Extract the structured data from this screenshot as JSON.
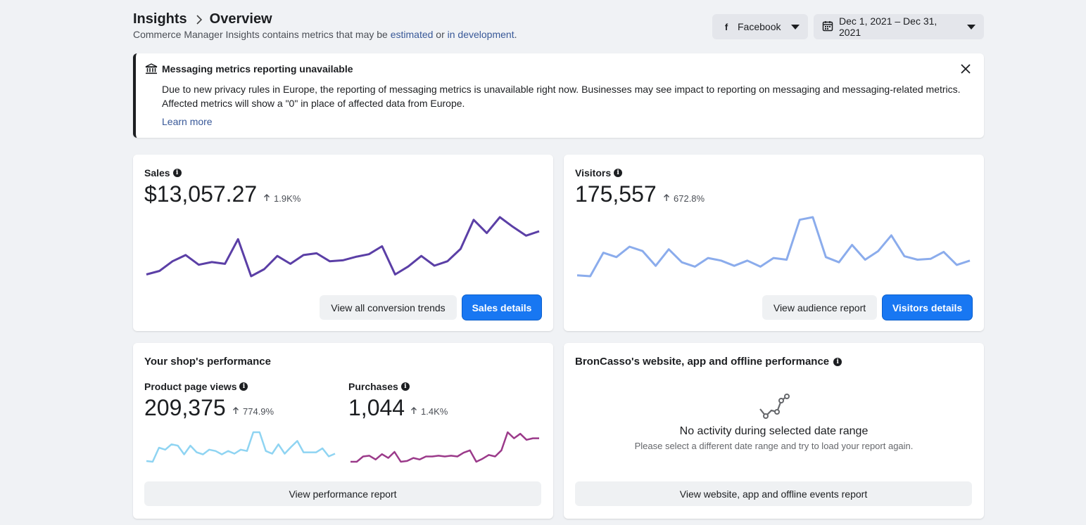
{
  "header": {
    "crumb_root": "Insights",
    "crumb_current": "Overview",
    "subtitle_prefix": "Commerce Manager Insights contains metrics that may be",
    "subtitle_link1": "estimated",
    "subtitle_or": "or",
    "subtitle_link2": "in development",
    "subtitle_end": ".",
    "channel": "Facebook",
    "date_range": "Dec 1, 2021 – Dec 31, 2021"
  },
  "notice": {
    "title": "Messaging metrics reporting unavailable",
    "body": "Due to new privacy rules in Europe, the reporting of messaging metrics is unavailable right now. Businesses may see impact to reporting on messaging and messaging-related metrics. Affected metrics will show a \"0\" in place of affected data from Europe.",
    "link": "Learn more"
  },
  "sales": {
    "label": "Sales",
    "value": "$13,057.27",
    "delta": "1.9K%",
    "btn_secondary": "View all conversion trends",
    "btn_primary": "Sales details",
    "color": "#5b3fa6",
    "trend": [
      5,
      9,
      20,
      27,
      16,
      19,
      17,
      45,
      3,
      11,
      26,
      17,
      27,
      29,
      20,
      21,
      25,
      28,
      37,
      5,
      14,
      26,
      15,
      20,
      34,
      67,
      52,
      70,
      59,
      49,
      54
    ]
  },
  "visitors": {
    "label": "Visitors",
    "value": "175,557",
    "delta": "672.8%",
    "btn_secondary": "View audience report",
    "btn_primary": "Visitors details",
    "color": "#8bacec",
    "trend": [
      12,
      11,
      38,
      33,
      45,
      40,
      23,
      42,
      27,
      22,
      32,
      29,
      23,
      29,
      22,
      32,
      30,
      76,
      79,
      33,
      27,
      47,
      30,
      40,
      58,
      34,
      30,
      31,
      39,
      24,
      29
    ]
  },
  "shop": {
    "title": "Your shop's performance",
    "product_views": {
      "label": "Product page views",
      "value": "209,375",
      "delta": "774.9%",
      "color": "#8fd4f2",
      "trend": [
        5,
        4,
        25,
        22,
        30,
        28,
        15,
        28,
        18,
        15,
        22,
        20,
        15,
        20,
        16,
        22,
        20,
        48,
        48,
        20,
        16,
        30,
        16,
        26,
        35,
        18,
        18,
        18,
        24,
        12,
        16
      ]
    },
    "purchases": {
      "label": "Purchases",
      "value": "1,044",
      "delta": "1.4K%",
      "color": "#9b3a8a",
      "trend": [
        5,
        5,
        12,
        13,
        8,
        15,
        10,
        18,
        5,
        6,
        10,
        8,
        12,
        12,
        13,
        12,
        13,
        12,
        17,
        20,
        5,
        9,
        14,
        12,
        20,
        44,
        36,
        42,
        34,
        36,
        36
      ]
    },
    "btn": "View performance report"
  },
  "web": {
    "title": "BronCasso's website, app and offline performance",
    "empty_title": "No activity during selected date range",
    "empty_sub": "Please select a different date range and try to load your report again.",
    "btn": "View website, app and offline events report"
  }
}
